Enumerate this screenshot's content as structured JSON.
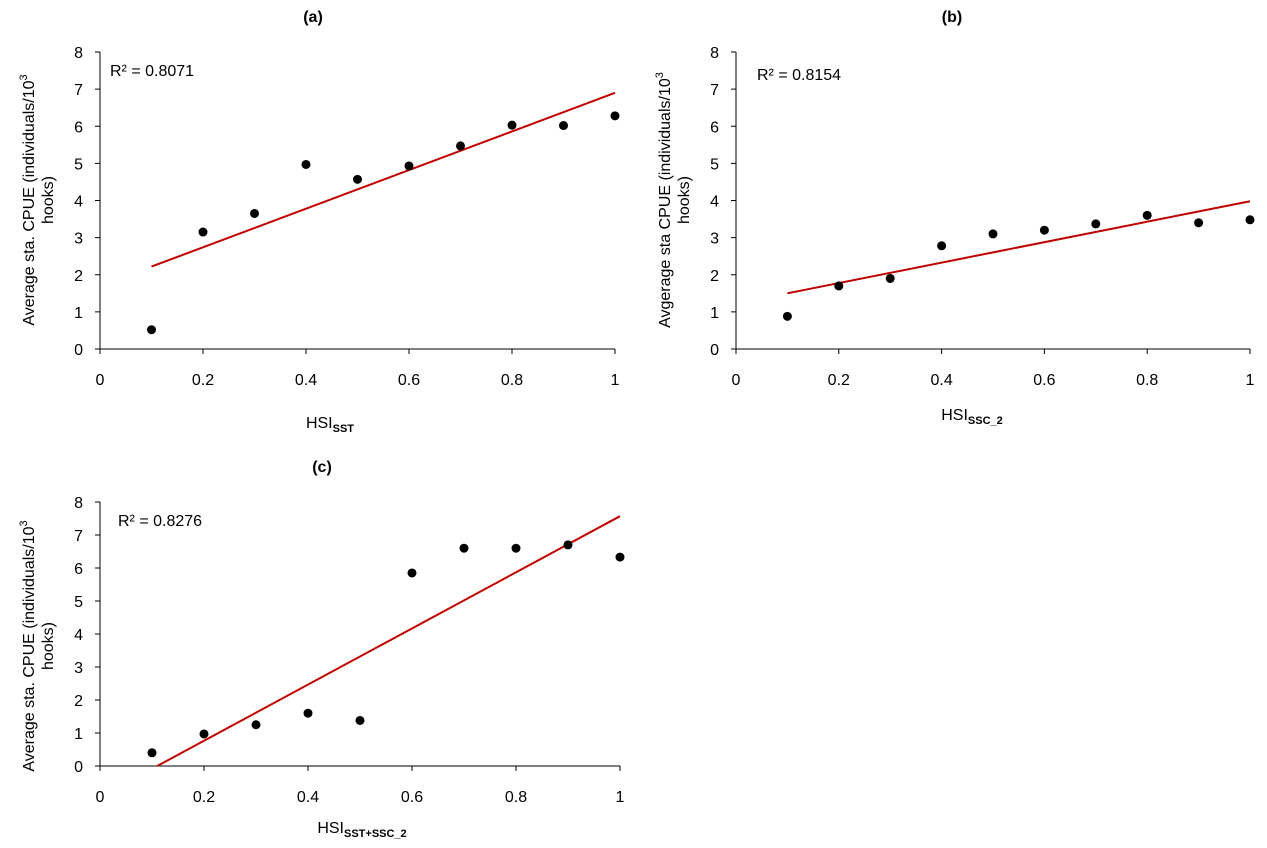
{
  "chart_data": [
    {
      "id": "a",
      "type": "scatter",
      "title": "(a)",
      "xlabel_main": "HSI",
      "xlabel_sub": "SST",
      "ylabel_line1": "Average sta. CPUE (individuals/10",
      "ylabel_sup": "3",
      "ylabel_line2": "hooks)",
      "r2_label": "R² = 0.8071",
      "xlim": [
        0,
        1
      ],
      "ylim": [
        0,
        8
      ],
      "x_ticks": [
        0,
        0.2,
        0.4,
        0.6,
        0.8,
        1
      ],
      "x_tick_labels": [
        "0",
        "0.2",
        "0.4",
        "0.6",
        "0.8",
        "1"
      ],
      "y_ticks": [
        0,
        1,
        2,
        3,
        4,
        5,
        6,
        7,
        8
      ],
      "y_tick_labels": [
        "0",
        "1",
        "2",
        "3",
        "4",
        "5",
        "6",
        "7",
        "8"
      ],
      "x": [
        0.1,
        0.2,
        0.3,
        0.4,
        0.5,
        0.6,
        0.7,
        0.8,
        0.9,
        1.0
      ],
      "y": [
        0.52,
        3.15,
        3.65,
        4.97,
        4.57,
        4.93,
        5.47,
        6.03,
        6.02,
        6.28
      ],
      "trendline": {
        "x": [
          0.1,
          1.0
        ],
        "y": [
          2.22,
          6.9
        ],
        "color": "#c00000"
      }
    },
    {
      "id": "b",
      "type": "scatter",
      "title": "(b)",
      "xlabel_main": "HSI",
      "xlabel_sub": "SSC_2",
      "ylabel_line1": "Avgerage sta CPUE (individuals/10",
      "ylabel_sup": "3",
      "ylabel_line2": "hooks)",
      "r2_label": "R² = 0.8154",
      "xlim": [
        0,
        1
      ],
      "ylim": [
        0,
        8
      ],
      "x_ticks": [
        0,
        0.2,
        0.4,
        0.6,
        0.8,
        1
      ],
      "x_tick_labels": [
        "0",
        "0.2",
        "0.4",
        "0.6",
        "0.8",
        "1"
      ],
      "y_ticks": [
        0,
        1,
        2,
        3,
        4,
        5,
        6,
        7,
        8
      ],
      "y_tick_labels": [
        "0",
        "1",
        "2",
        "3",
        "4",
        "5",
        "6",
        "7",
        "8"
      ],
      "x": [
        0.1,
        0.2,
        0.3,
        0.4,
        0.5,
        0.6,
        0.7,
        0.8,
        0.9,
        1.0
      ],
      "y": [
        0.88,
        1.7,
        1.9,
        2.78,
        3.1,
        3.2,
        3.37,
        3.6,
        3.4,
        3.48
      ],
      "trendline": {
        "x": [
          0.1,
          1.0
        ],
        "y": [
          1.5,
          3.98
        ],
        "color": "#c00000"
      }
    },
    {
      "id": "c",
      "type": "scatter",
      "title": "(c)",
      "xlabel_main": "HSI",
      "xlabel_sub": "SST+SSC_2",
      "ylabel_line1": "Average sta. CPUE (individuals/10",
      "ylabel_sup": "3",
      "ylabel_line2": "hooks)",
      "r2_label": "R² = 0.8276",
      "xlim": [
        0,
        1
      ],
      "ylim": [
        0,
        8
      ],
      "x_ticks": [
        0,
        0.2,
        0.4,
        0.6,
        0.8,
        1
      ],
      "x_tick_labels": [
        "0",
        "0.2",
        "0.4",
        "0.6",
        "0.8",
        "1"
      ],
      "y_ticks": [
        0,
        1,
        2,
        3,
        4,
        5,
        6,
        7,
        8
      ],
      "y_tick_labels": [
        "0",
        "1",
        "2",
        "3",
        "4",
        "5",
        "6",
        "7",
        "8"
      ],
      "x": [
        0.1,
        0.2,
        0.3,
        0.4,
        0.5,
        0.6,
        0.7,
        0.8,
        0.9,
        1.0
      ],
      "y": [
        0.4,
        0.97,
        1.25,
        1.6,
        1.38,
        5.85,
        6.6,
        6.6,
        6.7,
        6.33
      ],
      "trendline": {
        "x": [
          0.11,
          1.0
        ],
        "y": [
          0.0,
          7.57
        ],
        "color": "#c00000"
      }
    }
  ]
}
